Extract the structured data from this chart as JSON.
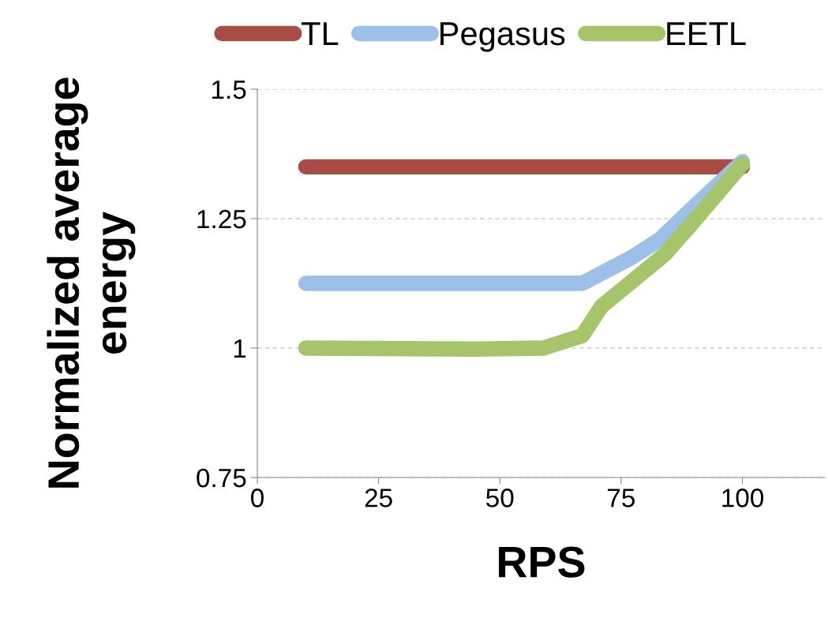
{
  "chart_data": {
    "type": "line",
    "xlabel": "RPS",
    "ylabel": "Normalized average\nenergy",
    "xlim": [
      0,
      117
    ],
    "xticks": [
      0,
      25,
      50,
      75,
      100
    ],
    "ylim": [
      0.75,
      1.5
    ],
    "yticks": [
      0.75,
      1.25,
      1.5,
      {
        "value": 1,
        "label": "1"
      }
    ],
    "grid": "y",
    "legend": "top",
    "line_style": "solid",
    "series": [
      {
        "name": "TL",
        "color": "#a84c44",
        "x": [
          10,
          100
        ],
        "values": [
          1.35,
          1.35
        ]
      },
      {
        "name": "Pegasus",
        "color": "#9dc0e8",
        "x": [
          10,
          67,
          77,
          83,
          90,
          100
        ],
        "values": [
          1.125,
          1.125,
          1.174,
          1.21,
          1.273,
          1.36
        ]
      },
      {
        "name": "EETL",
        "color": "#a6c46a",
        "x": [
          10,
          45,
          59,
          67,
          71,
          77,
          84,
          90,
          100
        ],
        "values": [
          1.0,
          0.998,
          1.0,
          1.024,
          1.081,
          1.127,
          1.181,
          1.245,
          1.355
        ]
      }
    ]
  }
}
